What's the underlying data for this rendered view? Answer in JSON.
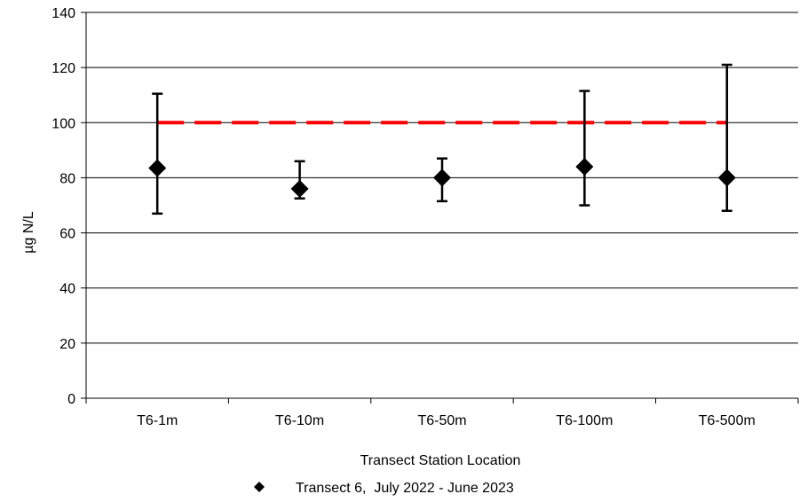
{
  "chart_data": {
    "type": "scatter",
    "title": "",
    "xlabel": "Transect Station Location",
    "ylabel": "µg N/L",
    "categories": [
      "T6-1m",
      "T6-10m",
      "T6-50m",
      "T6-100m",
      "T6-500m"
    ],
    "ylim": [
      0,
      140
    ],
    "yticks": [
      0,
      20,
      40,
      60,
      80,
      100,
      120,
      140
    ],
    "grid": true,
    "legend_position": "bottom",
    "series": [
      {
        "name": "Transect 6,  July 2022 - June 2023",
        "marker": "diamond",
        "color": "#000000",
        "values": [
          83.5,
          76,
          80,
          84,
          80
        ],
        "error_low": [
          67,
          72.5,
          71.5,
          70,
          68
        ],
        "error_high": [
          110.5,
          86,
          87,
          111.5,
          121
        ]
      }
    ],
    "reference_line": {
      "value": 100,
      "style": "dashed",
      "color": "#ff0000"
    }
  }
}
